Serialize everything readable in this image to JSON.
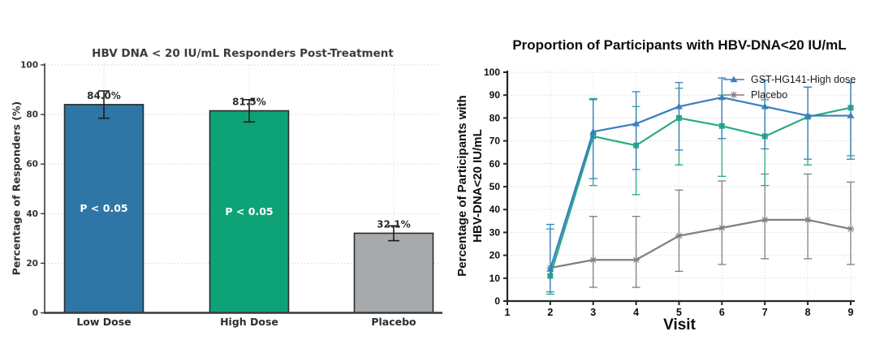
{
  "figure": {
    "background": "#ffffff"
  },
  "chart_data": [
    {
      "type": "bar",
      "title": "HBV DNA < 20 IU/mL Responders Post-Treatment",
      "xlabel": "",
      "ylabel": "Percentage of Responders (%)",
      "categories": [
        "Low Dose",
        "High Dose",
        "Placebo"
      ],
      "values": [
        84.0,
        81.5,
        32.1
      ],
      "value_labels": [
        "84.0%",
        "81.5%",
        "32.1%"
      ],
      "errors": [
        5.5,
        4.5,
        3
      ],
      "bar_annotations": [
        "P < 0.05",
        "P < 0.05",
        ""
      ],
      "bar_colors": [
        "#2E76A6",
        "#0EA377",
        "#A7AAAD"
      ],
      "bar_edge_color": "#2b2b2b",
      "error_color": "#1c1c1c",
      "ylim": [
        0,
        100
      ],
      "yticks": [
        0,
        20,
        40,
        60,
        80,
        100
      ],
      "grid": true
    },
    {
      "type": "line",
      "title": "Proportion of Participants with HBV-DNA<20 IU/mL",
      "xlabel": "Visit",
      "ylabel": "Percentage of Participants with HBV-DNA<20 IU/mL",
      "ylabel_line1": "Percentage of Participants with",
      "ylabel_line2": "HBV-DNA<20 IU/mL",
      "xlim": [
        1,
        9
      ],
      "ylim": [
        0,
        100
      ],
      "xticks": [
        1,
        2,
        3,
        4,
        5,
        6,
        7,
        8,
        9
      ],
      "yticks": [
        0,
        10,
        20,
        30,
        40,
        50,
        60,
        70,
        80,
        90,
        100
      ],
      "grid": true,
      "legend": {
        "position": "top-right",
        "entries": [
          "GST-HG141-High dose",
          "Placebo"
        ]
      },
      "series": [
        {
          "name": "GST-HG141-High dose",
          "color": "#3A7EBF",
          "marker": "triangle",
          "in_legend": true,
          "x": [
            2,
            3,
            4,
            5,
            6,
            7,
            8,
            9
          ],
          "y": [
            14,
            74,
            77.5,
            85,
            89,
            85,
            81,
            81
          ],
          "err_low": [
            4,
            53.5,
            57.5,
            66,
            71,
            66.5,
            62,
            62
          ],
          "err_high": [
            33.5,
            88,
            91.5,
            95.5,
            97.5,
            96.5,
            93.5,
            95.5
          ]
        },
        {
          "name": "",
          "color": "#27AC80",
          "marker": "square",
          "in_legend": false,
          "x": [
            2,
            3,
            4,
            5,
            6,
            7,
            8,
            9
          ],
          "y": [
            11,
            72,
            68,
            80,
            76.5,
            72,
            80.5,
            84.5
          ],
          "err_low": [
            3,
            50.5,
            46.5,
            59.5,
            54.5,
            50.5,
            59.5,
            63.5
          ],
          "err_high": [
            31.5,
            88.5,
            85,
            93,
            90,
            88,
            93.5,
            95.5
          ]
        },
        {
          "name": "Placebo",
          "color": "#808080",
          "marker": "star",
          "in_legend": true,
          "x": [
            2,
            3,
            4,
            5,
            6,
            7,
            8,
            9
          ],
          "y": [
            14.5,
            18,
            18,
            28.5,
            32,
            35.5,
            35.5,
            31.5
          ],
          "err_low": [
            14.5,
            6,
            6,
            13,
            16,
            18.5,
            18.5,
            16
          ],
          "err_high": [
            14.5,
            37,
            37,
            48.5,
            52.5,
            55.5,
            55.5,
            52
          ]
        }
      ]
    }
  ]
}
